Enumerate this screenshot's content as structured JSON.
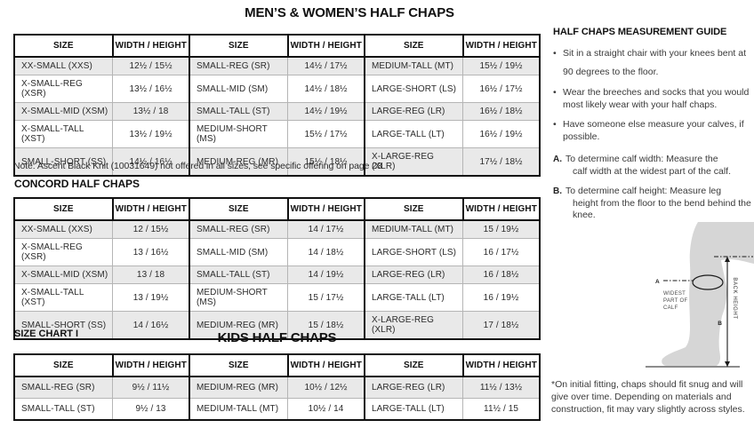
{
  "page": {
    "title": "MEN’S & WOMEN’S HALF CHAPS",
    "note": "Note: Ascent Black Knit (10031649) not offered in all sizes, see specific offering on page 23",
    "concord_title": "CONCORD HALF CHAPS",
    "size_chart_label": "SIZE CHART I",
    "kids_title": "KIDS HALF CHAPS"
  },
  "colors": {
    "border": "#111111",
    "row_stripe": "#e9e9e9",
    "text": "#231f20",
    "leg_fill": "#d6d6d6"
  },
  "tables": {
    "headers": [
      "SIZE",
      "WIDTH / HEIGHT",
      "SIZE",
      "WIDTH / HEIGHT",
      "SIZE",
      "WIDTH / HEIGHT"
    ],
    "mens_womens": {
      "rows": [
        [
          "XX-SMALL (XXS)",
          "12½ / 15½",
          "SMALL-REG (SR)",
          "14½ / 17½",
          "MEDIUM-TALL (MT)",
          "15½ / 19½"
        ],
        [
          "X-SMALL-REG (XSR)",
          "13½ / 16½",
          "SMALL-MID (SM)",
          "14½ / 18½",
          "LARGE-SHORT (LS)",
          "16½ / 17½"
        ],
        [
          "X-SMALL-MID (XSM)",
          "13½ / 18",
          "SMALL-TALL (ST)",
          "14½ / 19½",
          "LARGE-REG (LR)",
          "16½ / 18½"
        ],
        [
          "X-SMALL-TALL (XST)",
          "13½ / 19½",
          "MEDIUM-SHORT (MS)",
          "15½ / 17½",
          "LARGE-TALL (LT)",
          "16½ / 19½"
        ],
        [
          "SMALL-SHORT (SS)",
          "14½ / 16½",
          "MEDIUM-REG (MR)",
          "15½ / 18½",
          "X-LARGE-REG (XLR)",
          "17½ / 18½"
        ]
      ]
    },
    "concord": {
      "rows": [
        [
          "XX-SMALL (XXS)",
          "12 / 15½",
          "SMALL-REG (SR)",
          "14 / 17½",
          "MEDIUM-TALL (MT)",
          "15 / 19½"
        ],
        [
          "X-SMALL-REG (XSR)",
          "13 / 16½",
          "SMALL-MID (SM)",
          "14 / 18½",
          "LARGE-SHORT (LS)",
          "16 / 17½"
        ],
        [
          "X-SMALL-MID (XSM)",
          "13 / 18",
          "SMALL-TALL (ST)",
          "14 / 19½",
          "LARGE-REG (LR)",
          "16 / 18½"
        ],
        [
          "X-SMALL-TALL (XST)",
          "13 / 19½",
          "MEDIUM-SHORT (MS)",
          "15 / 17½",
          "LARGE-TALL (LT)",
          "16 / 19½"
        ],
        [
          "SMALL-SHORT (SS)",
          "14 / 16½",
          "MEDIUM-REG (MR)",
          "15 / 18½",
          "X-LARGE-REG (XLR)",
          "17 / 18½"
        ]
      ]
    },
    "kids": {
      "rows": [
        [
          "SMALL-REG (SR)",
          "9½ / 11½",
          "MEDIUM-REG (MR)",
          "10½ / 12½",
          "LARGE-REG (LR)",
          "11½ / 13½"
        ],
        [
          "SMALL-TALL (ST)",
          "9½ / 13",
          "MEDIUM-TALL (MT)",
          "10½ / 14",
          "LARGE-TALL (LT)",
          "11½ / 15"
        ]
      ]
    }
  },
  "sidebar": {
    "title": "HALF CHAPS MEASUREMENT GUIDE",
    "bullets": [
      "Sit in a straight chair with your knees bent at 90 degrees to the floor.",
      "Wear the breeches and socks that you would most likely wear with your half chaps.",
      "Have someone else measure your calves, if possible."
    ],
    "lettered": [
      {
        "letter": "A.",
        "text_line1": "To determine calf width: Measure the",
        "text_line2": "calf width at the widest part of the calf."
      },
      {
        "letter": "B.",
        "text_line1": "To determine calf height: Measure leg",
        "text_line2": "height from the floor to the bend behind the knee."
      }
    ],
    "diagram": {
      "label_a": "A",
      "label_b": "B",
      "widest_label_lines": [
        "WIDEST",
        "PART OF",
        "CALF"
      ],
      "back_height_label": "BACK HEIGHT"
    },
    "footnote": "*On initial fitting, chaps should fit snug and will give over time. Depending on materials and construction, fit may vary slightly across styles."
  }
}
